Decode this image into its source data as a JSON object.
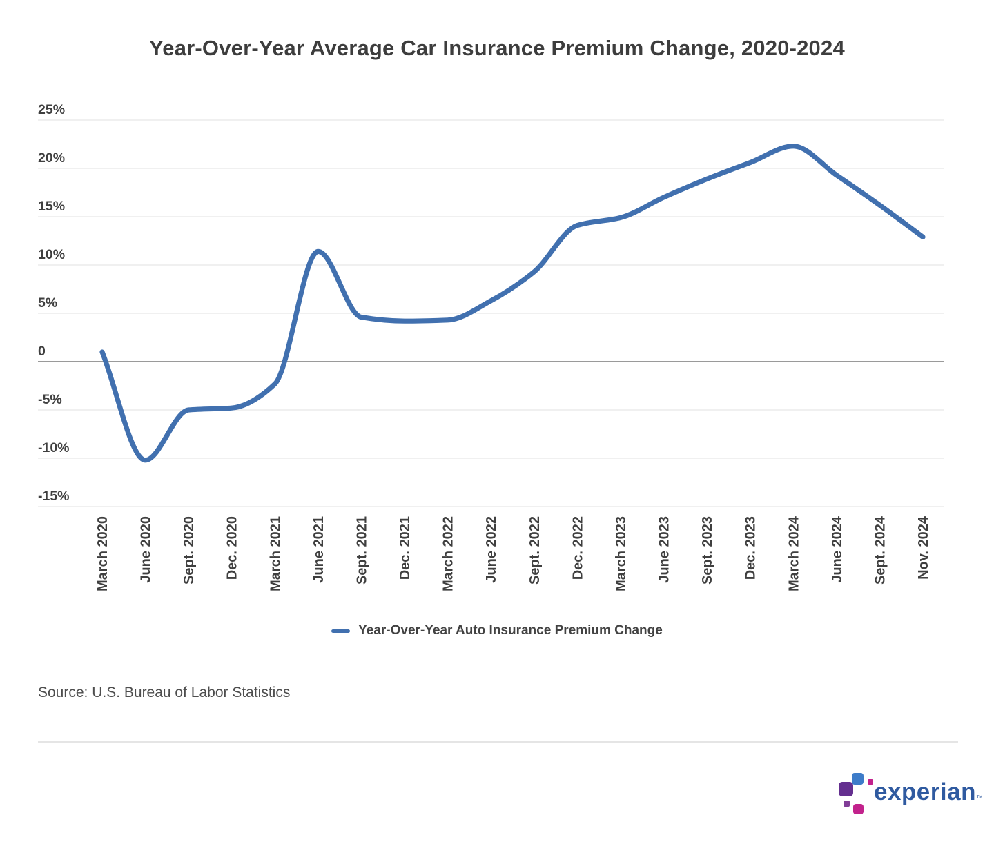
{
  "page": {
    "title": "Year-Over-Year Average Car Insurance Premium Change, 2020-2024"
  },
  "chart_data": {
    "type": "line",
    "title": "Year-Over-Year Average Car Insurance Premium Change, 2020-2024",
    "categories": [
      "March 2020",
      "June 2020",
      "Sept. 2020",
      "Dec. 2020",
      "March 2021",
      "June 2021",
      "Sept. 2021",
      "Dec. 2021",
      "March 2022",
      "June 2022",
      "Sept. 2022",
      "Dec. 2022",
      "March 2023",
      "June 2023",
      "Sept. 2023",
      "Dec. 2023",
      "March 2024",
      "June 2024",
      "Sept. 2024",
      "Nov. 2024"
    ],
    "series": [
      {
        "name": "Year-Over-Year Auto Insurance Premium Change",
        "values": [
          1.0,
          -10.2,
          -5.0,
          -4.8,
          -2.3,
          11.4,
          4.6,
          4.2,
          4.3,
          6.3,
          9.3,
          14.1,
          14.9,
          17.0,
          18.9,
          20.6,
          22.3,
          19.3,
          16.2,
          12.9
        ]
      }
    ],
    "ylim": [
      -15,
      25
    ],
    "y_ticks": [
      25,
      20,
      15,
      10,
      5,
      0,
      -5,
      -10,
      -15
    ],
    "y_tick_labels": [
      "25%",
      "20%",
      "15%",
      "10%",
      "5%",
      "0",
      "-5%",
      "-10%",
      "-15%"
    ],
    "grid": true,
    "legend_position": "bottom",
    "xlabel": "",
    "ylabel": ""
  },
  "legend": {
    "label": "Year-Over-Year Auto Insurance Premium Change"
  },
  "footer": {
    "source": "Source: U.S. Bureau of Labor Statistics"
  },
  "logo": {
    "wordmark": "experian",
    "trademark": "™"
  },
  "colors": {
    "line": "#4170af",
    "grid": "#e8e8e8",
    "zero_line": "#787878",
    "title_text": "#3d3d3d",
    "axis_text": "#3f3f3f",
    "source_text": "#4d4d4d",
    "divider": "#e5e5e5",
    "logo_wordmark_blue": "#2f5aa0",
    "logo_block_blue": "#3d7cc9",
    "logo_block_purple": "#642f8f",
    "logo_block_magenta": "#c2228c",
    "logo_block_small_purple": "#813d97"
  }
}
